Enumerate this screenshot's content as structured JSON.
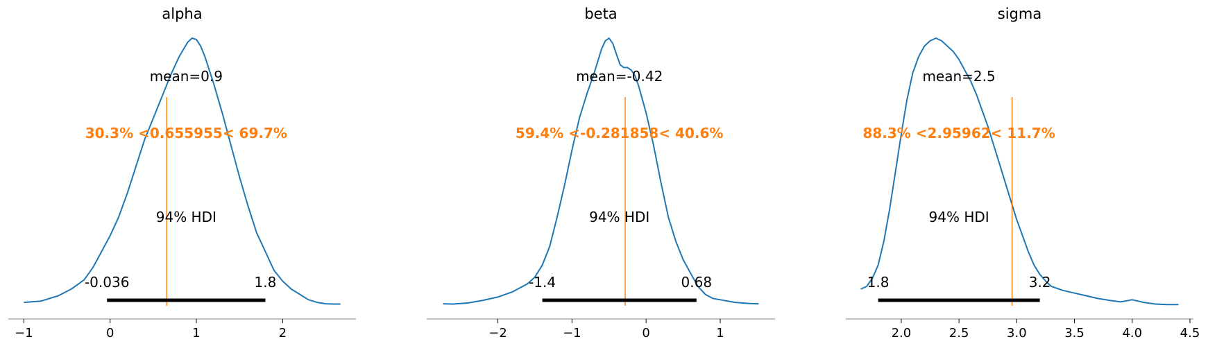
{
  "chart_data": [
    {
      "type": "area",
      "title": "alpha",
      "mean_label": "mean=0.9",
      "ref_label": "30.3% <0.655955< 69.7%",
      "ref_value": 0.655955,
      "hdi_label": "94% HDI",
      "hdi_low": -0.036,
      "hdi_high": 1.8,
      "hdi_low_label": "-0.036",
      "hdi_high_label": "1.8",
      "xlim": [
        -1.18,
        2.85
      ],
      "ticks": [
        -1,
        0,
        1,
        2
      ],
      "tick_labels": [
        "−1",
        "0",
        "1",
        "2"
      ],
      "density": {
        "x": [
          -1.0,
          -0.8,
          -0.6,
          -0.45,
          -0.3,
          -0.2,
          -0.1,
          0.0,
          0.1,
          0.2,
          0.3,
          0.4,
          0.5,
          0.6,
          0.7,
          0.8,
          0.9,
          0.95,
          1.0,
          1.05,
          1.1,
          1.2,
          1.3,
          1.4,
          1.5,
          1.6,
          1.7,
          1.8,
          1.9,
          2.0,
          2.1,
          2.2,
          2.3,
          2.4,
          2.5,
          2.6,
          2.67
        ],
        "y": [
          0.01,
          0.015,
          0.035,
          0.06,
          0.095,
          0.14,
          0.2,
          0.26,
          0.33,
          0.42,
          0.52,
          0.62,
          0.7,
          0.78,
          0.86,
          0.93,
          0.985,
          1.0,
          0.995,
          0.97,
          0.93,
          0.83,
          0.72,
          0.6,
          0.48,
          0.37,
          0.27,
          0.2,
          0.13,
          0.09,
          0.06,
          0.04,
          0.02,
          0.01,
          0.005,
          0.004,
          0.004
        ]
      }
    },
    {
      "type": "area",
      "title": "beta",
      "mean_label": "mean=-0.42",
      "ref_label": "59.4% <-0.281858< 40.6%",
      "ref_value": -0.281858,
      "hdi_label": "94% HDI",
      "hdi_low": -1.4,
      "hdi_high": 0.68,
      "hdi_low_label": "-1.4",
      "hdi_high_label": "0.68",
      "xlim": [
        -2.96,
        1.74
      ],
      "ticks": [
        -2,
        -1,
        0,
        1
      ],
      "tick_labels": [
        "−2",
        "−1",
        "0",
        "1"
      ],
      "density": {
        "x": [
          -2.74,
          -2.6,
          -2.4,
          -2.2,
          -2.0,
          -1.8,
          -1.6,
          -1.5,
          -1.4,
          -1.3,
          -1.2,
          -1.1,
          -1.0,
          -0.9,
          -0.8,
          -0.7,
          -0.6,
          -0.55,
          -0.5,
          -0.45,
          -0.4,
          -0.35,
          -0.3,
          -0.25,
          -0.2,
          -0.15,
          -0.1,
          0.0,
          0.1,
          0.2,
          0.3,
          0.4,
          0.5,
          0.6,
          0.7,
          0.8,
          0.9,
          1.0,
          1.2,
          1.4,
          1.52
        ],
        "y": [
          0.005,
          0.004,
          0.008,
          0.018,
          0.03,
          0.05,
          0.08,
          0.105,
          0.15,
          0.22,
          0.33,
          0.45,
          0.58,
          0.7,
          0.79,
          0.87,
          0.96,
          0.99,
          1.0,
          0.98,
          0.94,
          0.9,
          0.89,
          0.89,
          0.88,
          0.86,
          0.82,
          0.72,
          0.6,
          0.46,
          0.33,
          0.24,
          0.17,
          0.12,
          0.07,
          0.04,
          0.025,
          0.02,
          0.01,
          0.006,
          0.005
        ]
      }
    },
    {
      "type": "area",
      "title": "sigma",
      "mean_label": "mean=2.5",
      "ref_label": "88.3% <2.95962< 11.7%",
      "ref_value": 2.95962,
      "hdi_label": "94% HDI",
      "hdi_low": 1.8,
      "hdi_high": 3.2,
      "hdi_low_label": "1.8",
      "hdi_high_label": "3.2",
      "xlim": [
        1.52,
        4.53
      ],
      "ticks": [
        2.0,
        2.5,
        3.0,
        3.5,
        4.0,
        4.5
      ],
      "tick_labels": [
        "2.0",
        "2.5",
        "3.0",
        "3.5",
        "4.0",
        "4.5"
      ],
      "density": {
        "x": [
          1.65,
          1.7,
          1.75,
          1.8,
          1.85,
          1.9,
          1.95,
          2.0,
          2.05,
          2.1,
          2.15,
          2.2,
          2.25,
          2.3,
          2.35,
          2.4,
          2.45,
          2.5,
          2.55,
          2.6,
          2.65,
          2.7,
          2.75,
          2.8,
          2.85,
          2.9,
          2.95,
          3.0,
          3.05,
          3.1,
          3.15,
          3.2,
          3.25,
          3.3,
          3.4,
          3.5,
          3.6,
          3.7,
          3.8,
          3.9,
          4.0,
          4.1,
          4.2,
          4.3,
          4.4
        ],
        "y": [
          0.06,
          0.07,
          0.1,
          0.15,
          0.24,
          0.36,
          0.5,
          0.64,
          0.77,
          0.87,
          0.93,
          0.97,
          0.99,
          1.0,
          0.99,
          0.97,
          0.95,
          0.92,
          0.88,
          0.84,
          0.79,
          0.73,
          0.67,
          0.6,
          0.53,
          0.46,
          0.39,
          0.32,
          0.26,
          0.2,
          0.15,
          0.115,
          0.09,
          0.07,
          0.055,
          0.045,
          0.035,
          0.025,
          0.018,
          0.012,
          0.02,
          0.01,
          0.004,
          0.002,
          0.002
        ]
      }
    }
  ]
}
